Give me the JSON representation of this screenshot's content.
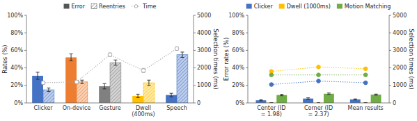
{
  "chart_data": [
    {
      "type": "bar",
      "categories": [
        "Clicker",
        "On-device",
        "Gesture",
        "Dwell (400ms)",
        "Speech"
      ],
      "series": [
        {
          "name": "Error",
          "type": "bar",
          "color": "#555555",
          "colors": [
            "#4472c4",
            "#ed7d31",
            "#808080",
            "#ffc000",
            "#4472c4"
          ],
          "values": [
            0.31,
            0.52,
            0.19,
            0.08,
            0.09
          ],
          "errors": [
            0.04,
            0.04,
            0.03,
            0.02,
            0.02
          ]
        },
        {
          "name": "Reentries",
          "type": "bar",
          "color": "#555555",
          "colors": [
            "#4472c4",
            "#ed7d31",
            "#808080",
            "#ffc000",
            "#4472c4"
          ],
          "values": [
            0.15,
            0.24,
            0.46,
            0.23,
            0.55
          ],
          "errors": [
            0.02,
            0.02,
            0.03,
            0.03,
            0.03
          ]
        },
        {
          "name": "Time",
          "type": "line",
          "axis": "y2",
          "color": "#a9a9a9",
          "marker": "open-circle",
          "line_style": "dotted",
          "values": [
            1150,
            1200,
            2750,
            1850,
            3100
          ],
          "errors": [
            80,
            80,
            100,
            120,
            100
          ]
        }
      ],
      "ylim": [
        0,
        1.0
      ],
      "yticks": [
        {
          "value": 0,
          "label": "0%"
        },
        {
          "value": 0.2,
          "label": "20%"
        },
        {
          "value": 0.4,
          "label": "40%"
        },
        {
          "value": 0.6,
          "label": "60%"
        },
        {
          "value": 0.8,
          "label": "80%"
        },
        {
          "value": 1.0,
          "label": "100%"
        }
      ],
      "y2lim": [
        0,
        5000
      ],
      "y2ticks": [
        0,
        1000,
        2000,
        3000,
        4000,
        5000
      ],
      "ylabel": "Rates (%)",
      "y2label": "Selection times (ms)",
      "legend": "top",
      "grid": false
    },
    {
      "type": "bar",
      "categories": [
        "Center (ID = 1.98)",
        "Corner (ID = 2.37)",
        "Mean results"
      ],
      "series": [
        {
          "name": "Clicker",
          "type": "bar",
          "color": "#4472c4",
          "values": [
            0.03,
            0.05,
            0.04
          ],
          "errors": [
            0.005,
            0.008,
            0.006
          ]
        },
        {
          "name": "Dwell (1000ms)",
          "type": "bar",
          "color": "#ffc000",
          "values": [
            0.002,
            0.002,
            0.002
          ],
          "errors": [
            0.001,
            0.001,
            0.001
          ]
        },
        {
          "name": "Motion Matching",
          "type": "bar",
          "color": "#70ad47",
          "values": [
            0.09,
            0.105,
            0.095
          ],
          "errors": [
            0.008,
            0.008,
            0.006
          ]
        },
        {
          "type": "line",
          "axis": "y2",
          "color": "#4472c4",
          "marker": "circle",
          "line_style": "dotted",
          "values": [
            1050,
            1250,
            1150
          ]
        },
        {
          "type": "line",
          "axis": "y2",
          "color": "#ffc000",
          "marker": "circle",
          "line_style": "dotted",
          "values": [
            1800,
            2050,
            1950
          ]
        },
        {
          "type": "line",
          "axis": "y2",
          "color": "#70ad47",
          "marker": "circle",
          "line_style": "dotted",
          "values": [
            1600,
            1600,
            1600
          ]
        }
      ],
      "ylim": [
        0,
        1.0
      ],
      "yticks": [
        {
          "value": 0,
          "label": "0%"
        },
        {
          "value": 0.2,
          "label": "20%"
        },
        {
          "value": 0.4,
          "label": "40%"
        },
        {
          "value": 0.6,
          "label": "60%"
        },
        {
          "value": 0.8,
          "label": "80%"
        },
        {
          "value": 1.0,
          "label": "100%"
        }
      ],
      "y2lim": [
        0,
        5000
      ],
      "y2ticks": [
        0,
        1000,
        2000,
        3000,
        4000,
        5000
      ],
      "ylabel": "Error rates (%)",
      "y2label": "Selection times (ms)",
      "legend": "top",
      "grid": false
    }
  ]
}
